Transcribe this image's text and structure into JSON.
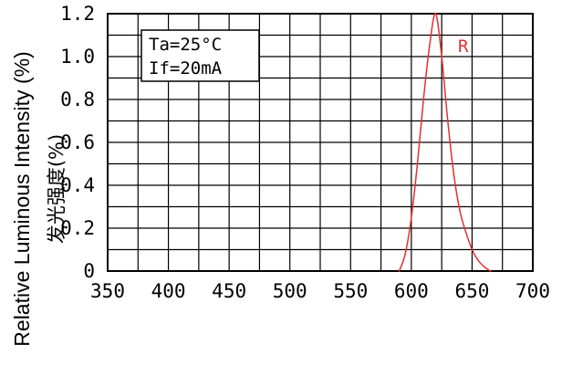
{
  "chart_data": {
    "type": "line",
    "ylabel": "Relative Luminous Intensity (%)",
    "ylabel_cn": "发光强度(%)",
    "xlim": [
      350,
      700
    ],
    "ylim": [
      0,
      1.2
    ],
    "x_ticks": [
      350,
      400,
      450,
      500,
      550,
      600,
      650,
      700
    ],
    "x_tick_labels": [
      "350",
      "400",
      "450",
      "500",
      "550",
      "600",
      "650",
      "700"
    ],
    "y_ticks": [
      0,
      0.2,
      0.4,
      0.6,
      0.8,
      1.0,
      1.2
    ],
    "y_tick_labels": [
      "0",
      "0.2",
      "0.4",
      "0.6",
      "0.8",
      "1.0",
      "1.2"
    ],
    "x_grid_step": 25,
    "y_grid_step": 0.1,
    "grid": true,
    "annotation_lines": [
      "Ta=25°C",
      "If=20mA"
    ],
    "series": [
      {
        "name": "R",
        "color": "#e53030",
        "points": [
          [
            590,
            0.0
          ],
          [
            595,
            0.08
          ],
          [
            600,
            0.25
          ],
          [
            605,
            0.5
          ],
          [
            610,
            0.8
          ],
          [
            615,
            1.05
          ],
          [
            620,
            1.2
          ],
          [
            625,
            1.0
          ],
          [
            630,
            0.7
          ],
          [
            635,
            0.45
          ],
          [
            640,
            0.28
          ],
          [
            645,
            0.18
          ],
          [
            650,
            0.1
          ],
          [
            655,
            0.05
          ],
          [
            660,
            0.02
          ],
          [
            665,
            0.0
          ]
        ]
      }
    ]
  }
}
